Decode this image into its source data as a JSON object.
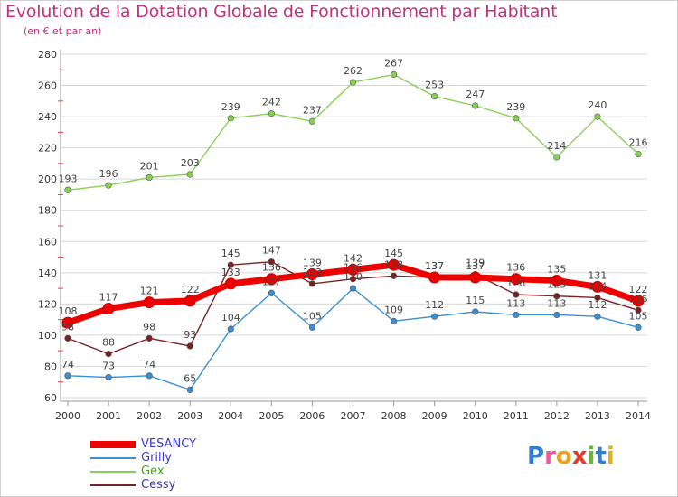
{
  "header": {
    "title": "Evolution de la Dotation Globale de Fonctionnement par Habitant",
    "subtitle": "(en € et par an)"
  },
  "logo": {
    "text": "Proxiti",
    "letter_colors": [
      "#2f7fd6",
      "#e85b9a",
      "#f0a020",
      "#e63a2e",
      "#6cb33f",
      "#2f7fd6",
      "#e0b020"
    ]
  },
  "chart_data": {
    "type": "line",
    "title": "Evolution de la Dotation Globale de Fonctionnement par Habitant",
    "subtitle": "(en € et par an)",
    "xlabel": "",
    "ylabel": "",
    "x": [
      2000,
      2001,
      2002,
      2003,
      2004,
      2005,
      2006,
      2007,
      2008,
      2009,
      2010,
      2011,
      2012,
      2013,
      2014
    ],
    "ylim": [
      60,
      280
    ],
    "yticks": [
      60,
      80,
      100,
      120,
      140,
      160,
      180,
      200,
      220,
      240,
      260,
      280
    ],
    "grid": "horizontal",
    "legend_position": "bottom-left",
    "series": [
      {
        "name": "VESANCY",
        "color": "#ee0000",
        "emphasis": true,
        "values": [
          108,
          117,
          121,
          122,
          133,
          136,
          139,
          142,
          145,
          137,
          137,
          136,
          135,
          131,
          122
        ]
      },
      {
        "name": "Grilly",
        "color": "#3a8fd0",
        "values": [
          74,
          73,
          74,
          65,
          104,
          127,
          105,
          130,
          109,
          112,
          115,
          113,
          113,
          112,
          105
        ]
      },
      {
        "name": "Gex",
        "color": "#88d055",
        "values": [
          193,
          196,
          201,
          203,
          239,
          242,
          237,
          262,
          267,
          253,
          247,
          239,
          214,
          240,
          216
        ]
      },
      {
        "name": "Cessy",
        "color": "#7a2222",
        "values": [
          98,
          88,
          98,
          93,
          145,
          147,
          133,
          136,
          138,
          137,
          139,
          126,
          125,
          124,
          116
        ]
      }
    ]
  }
}
